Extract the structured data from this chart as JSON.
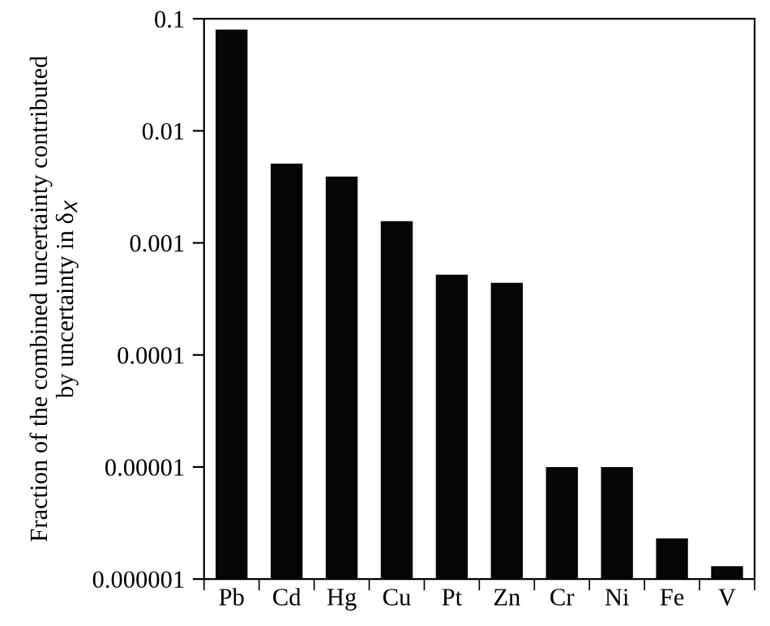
{
  "chart_data": {
    "type": "bar",
    "ylabel": "Fraction of the combined uncertainty contributed\nby uncertainty in δ$_{X}$",
    "categories": [
      "Pb",
      "Cd",
      "Hg",
      "Cu",
      "Pt",
      "Zn",
      "Cr",
      "Ni",
      "Fe",
      "V"
    ],
    "values": [
      0.08,
      0.0051,
      0.0039,
      0.00156,
      0.00052,
      0.00044,
      1e-05,
      1e-05,
      2.3e-06,
      1.3e-06
    ],
    "color": "#050505",
    "log": "y",
    "ylim": [
      1e-06,
      0.1
    ],
    "yticks": [
      {
        "value": 0.1,
        "label": "0.1"
      },
      {
        "value": 0.01,
        "label": "0.01"
      },
      {
        "value": 0.001,
        "label": "0.001"
      },
      {
        "value": 0.0001,
        "label": "0.0001"
      },
      {
        "value": 1e-05,
        "label": "0.00001"
      },
      {
        "value": 1e-06,
        "label": "0.000001"
      }
    ],
    "grid": false,
    "legend": false
  }
}
